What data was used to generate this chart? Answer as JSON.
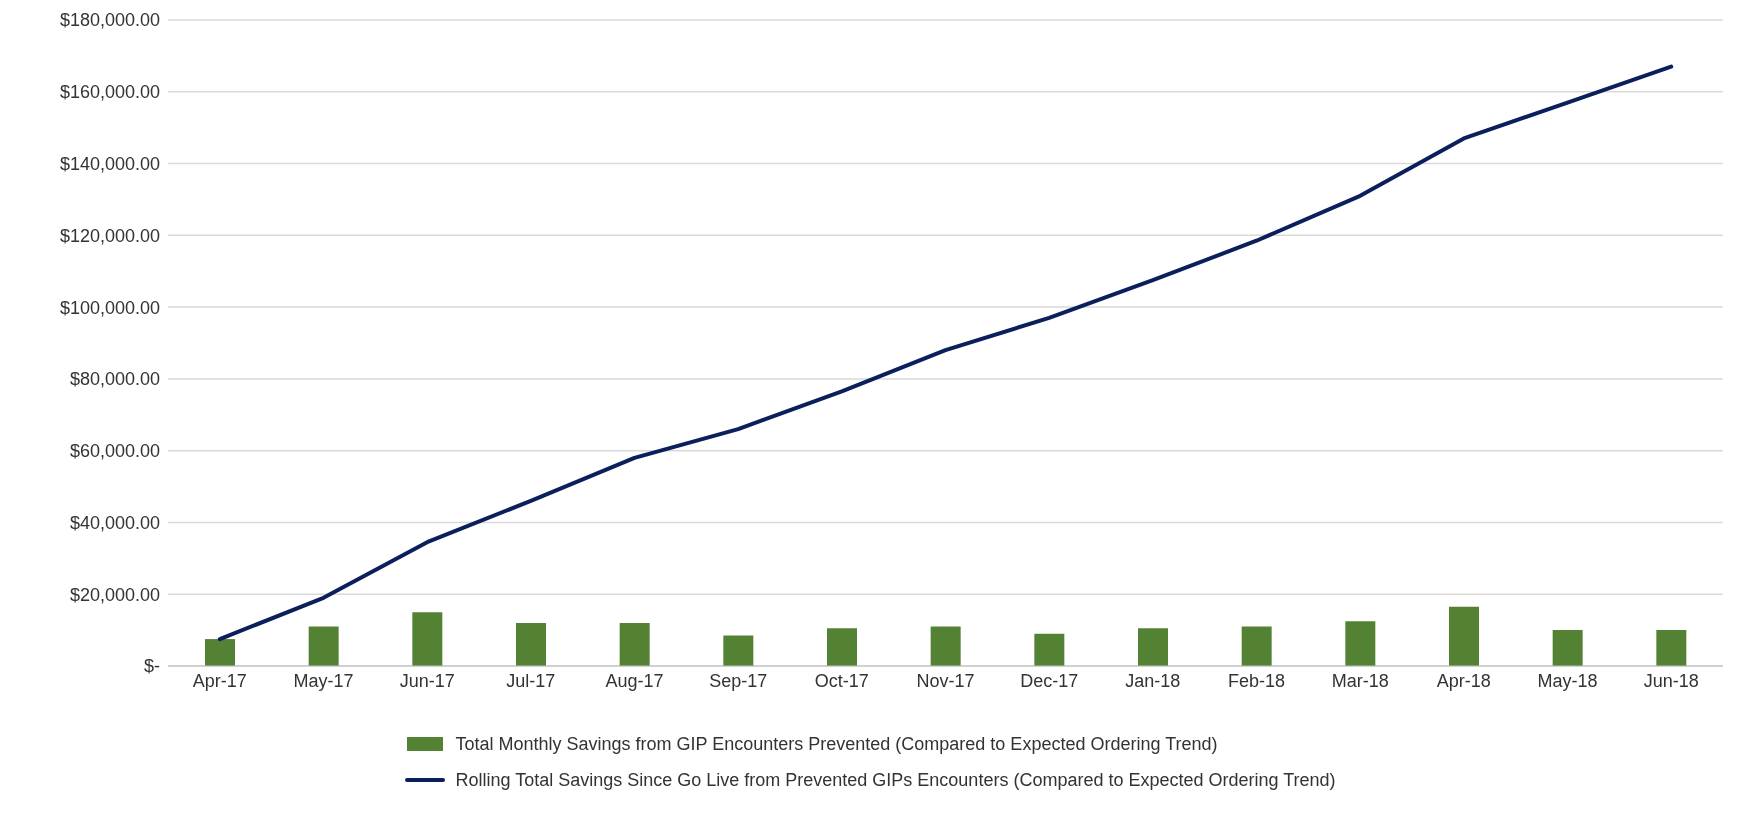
{
  "chart_data": {
    "type": "bar",
    "categories": [
      "Apr-17",
      "May-17",
      "Jun-17",
      "Jul-17",
      "Aug-17",
      "Sep-17",
      "Oct-17",
      "Nov-17",
      "Dec-17",
      "Jan-18",
      "Feb-18",
      "Mar-18",
      "Apr-18",
      "May-18",
      "Jun-18"
    ],
    "series": [
      {
        "name": "Total Monthly Savings from GIP Encounters Prevented (Compared to Expected Ordering Trend)",
        "color": "#548235",
        "values": [
          7500,
          11000,
          15000,
          12000,
          12000,
          8500,
          10500,
          11000,
          9000,
          10500,
          11000,
          12500,
          16500,
          10000,
          10000
        ]
      },
      {
        "name": "Rolling Total Savings Since Go Live from Prevented GIPs Encounters (Compared to Expected Ordering Trend)",
        "type": "line",
        "color": "#0b1f5c",
        "values": [
          7500,
          19000,
          34500,
          46000,
          58000,
          66000,
          76500,
          88000,
          97000,
          107500,
          118500,
          131000,
          147000,
          157000,
          167000
        ]
      }
    ],
    "ylim": [
      0,
      180000
    ],
    "yticks": [
      {
        "value": 0,
        "label": "$-"
      },
      {
        "value": 20000,
        "label": "$20,000.00"
      },
      {
        "value": 40000,
        "label": "$40,000.00"
      },
      {
        "value": 60000,
        "label": "$60,000.00"
      },
      {
        "value": 80000,
        "label": "$80,000.00"
      },
      {
        "value": 100000,
        "label": "$100,000.00"
      },
      {
        "value": 120000,
        "label": "$120,000.00"
      },
      {
        "value": 140000,
        "label": "$140,000.00"
      },
      {
        "value": 160000,
        "label": "$160,000.00"
      },
      {
        "value": 180000,
        "label": "$180,000.00"
      }
    ],
    "grid": "y",
    "legend": "bottom",
    "marker": "none",
    "line_style": "solid"
  }
}
